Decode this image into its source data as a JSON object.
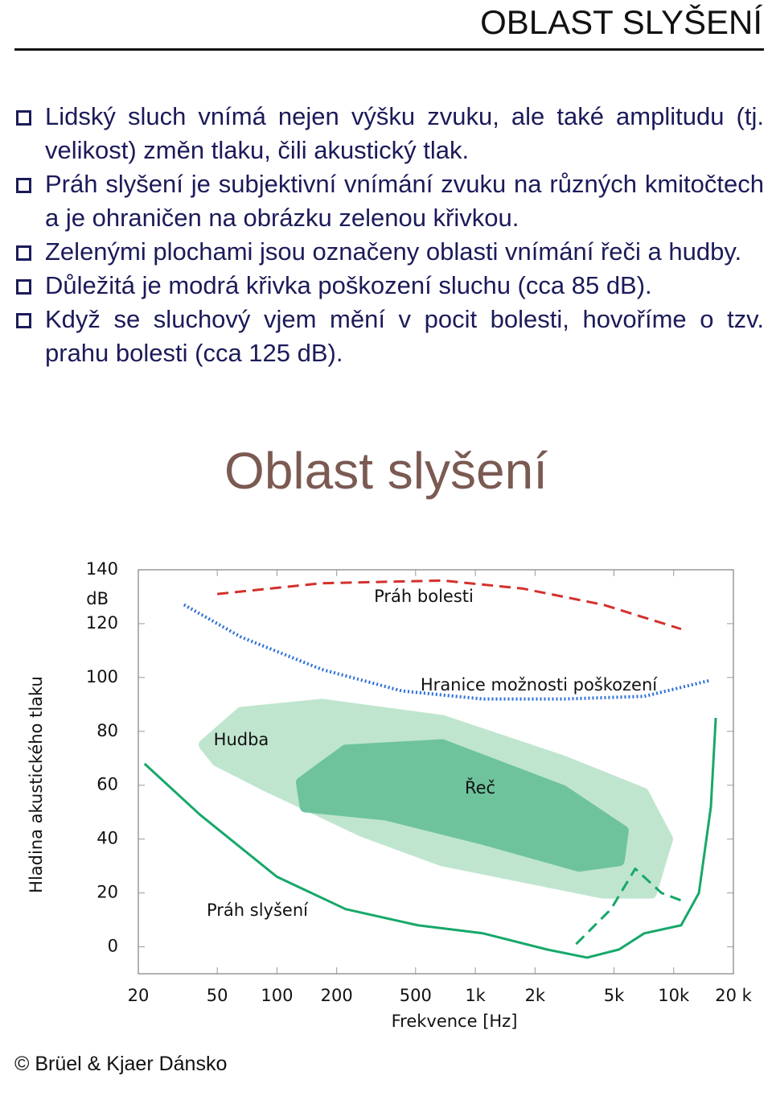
{
  "header": {
    "title": "OBLAST SLYŠENÍ"
  },
  "bullets": [
    "Lidský sluch vnímá nejen výšku zvuku, ale také amplitudu (tj. velikost) změn tlaku, čili akustický tlak.",
    "Práh slyšení je subjektivní vnímání zvuku na různých kmitočtech a je ohraničen na obrázku zelenou křivkou.",
    "Zelenými plochami jsou označeny oblasti vnímání řeči a hudby.",
    "Důležitá je modrá křivka poškození sluchu (cca 85 dB).",
    "Když se sluchový vjem mění v pocit bolesti, hovoříme o tzv. prahu bolesti (cca 125 dB)."
  ],
  "chart_data": {
    "type": "line",
    "title": "Oblast slyšení",
    "x_label": "Frekvence [Hz]",
    "y_label": "Hladina akustického tlaku",
    "y_unit": "dB",
    "x_scale": "log",
    "xlim": [
      20,
      20000
    ],
    "ylim": [
      -10,
      140
    ],
    "xticks": [
      20,
      50,
      100,
      200,
      500,
      {
        "value": 1000,
        "label": "1k"
      },
      {
        "value": 2000,
        "label": "2k"
      },
      {
        "value": 5000,
        "label": "5k"
      },
      {
        "value": 10000,
        "label": "10k"
      },
      {
        "value": 20000,
        "label": "20 k"
      }
    ],
    "yticks": [
      0,
      20,
      40,
      60,
      80,
      100,
      120,
      140
    ],
    "series": [
      {
        "name": "Hudba",
        "style": "area",
        "color": "#bfe5cf",
        "x": [
          43,
          66,
          168,
          681,
          2760,
          7030,
          9300,
          7710,
          4410,
          1730,
          681,
          268,
          87,
          50
        ],
        "values": [
          75,
          87,
          90,
          84,
          69,
          57,
          40,
          20,
          20,
          26,
          32,
          43,
          60,
          69
        ]
      },
      {
        "name": "Řeč",
        "style": "area",
        "color": "#6ec39d",
        "x": [
          133,
          222,
          681,
          2760,
          5560,
          5300,
          3330,
          1090,
          355,
          139
        ],
        "values": [
          61,
          73,
          75,
          58,
          43,
          32,
          30,
          40,
          49,
          52
        ]
      },
      {
        "name": "Práh bolesti",
        "style": "dashed",
        "color": "#d4302c",
        "x": [
          50,
          168,
          684,
          1740,
          4420,
          10900
        ],
        "values": [
          131,
          135,
          136,
          133,
          127,
          118
        ]
      },
      {
        "name": "Hranice možnosti poškození",
        "style": "dotted",
        "color": "#2d6fd8",
        "x": [
          34,
          66,
          168,
          427,
          1094,
          2760,
          7100,
          15400
        ],
        "values": [
          127,
          115,
          103,
          95,
          92,
          92,
          93,
          99
        ]
      },
      {
        "name": "Práh slyšení",
        "style": "solid",
        "color": "#17a86a",
        "x": [
          21.5,
          41,
          100,
          222,
          513,
          1094,
          2300,
          3660,
          5300,
          7100,
          10900,
          13400,
          15400,
          16300
        ],
        "values": [
          68,
          49,
          26,
          14,
          8,
          5,
          -1,
          -4,
          -1,
          5,
          8,
          20,
          52,
          85
        ]
      },
      {
        "style": "dashed",
        "color": "#17a86a",
        "x": [
          3220,
          4830,
          6400,
          8680,
          11100
        ],
        "values": [
          1,
          14,
          29,
          20,
          17
        ]
      }
    ]
  },
  "credit": "© Brüel & Kjaer Dánsko"
}
